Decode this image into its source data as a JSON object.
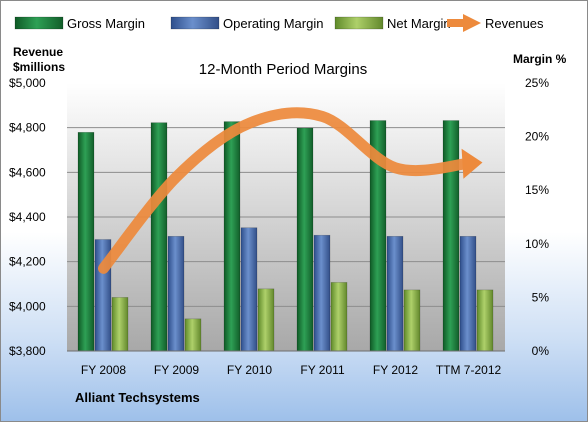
{
  "chart_data": {
    "type": "bar",
    "title": "12-Month Period Margins",
    "categories": [
      "FY 2008",
      "FY 2009",
      "FY 2010",
      "FY 2011",
      "FY 2012",
      "TTM 7-2012"
    ],
    "series": [
      {
        "name": "Gross Margin",
        "axis": "right",
        "values": [
          20.4,
          21.3,
          21.4,
          20.8,
          21.5,
          21.5
        ]
      },
      {
        "name": "Operating Margin",
        "axis": "right",
        "values": [
          10.4,
          10.7,
          11.5,
          10.8,
          10.7,
          10.7
        ]
      },
      {
        "name": "Net Margin",
        "axis": "right",
        "values": [
          5.0,
          3.0,
          5.8,
          6.4,
          5.7,
          5.7
        ]
      },
      {
        "name": "Revenues",
        "axis": "left",
        "type": "line",
        "values": [
          4170,
          4580,
          4820,
          4850,
          4620,
          4640
        ]
      }
    ],
    "y_left": {
      "label_line1": "Revenue",
      "label_line2": "$millions",
      "ylim": [
        3800,
        5000
      ],
      "ticks": [
        "$3,800",
        "$4,000",
        "$4,200",
        "$4,400",
        "$4,600",
        "$4,800",
        "$5,000"
      ]
    },
    "y_right": {
      "label": "Margin %",
      "ylim": [
        0,
        25
      ],
      "ticks": [
        "0%",
        "5%",
        "10%",
        "15%",
        "20%",
        "25%"
      ]
    },
    "legend_position": "top",
    "grid": true,
    "colors": {
      "Gross Margin": "#1e7a3c",
      "Operating Margin": "#4a6fb0",
      "Net Margin": "#8fb54a",
      "Revenues": "#ed8a3c"
    }
  },
  "company": "Alliant Techsystems"
}
